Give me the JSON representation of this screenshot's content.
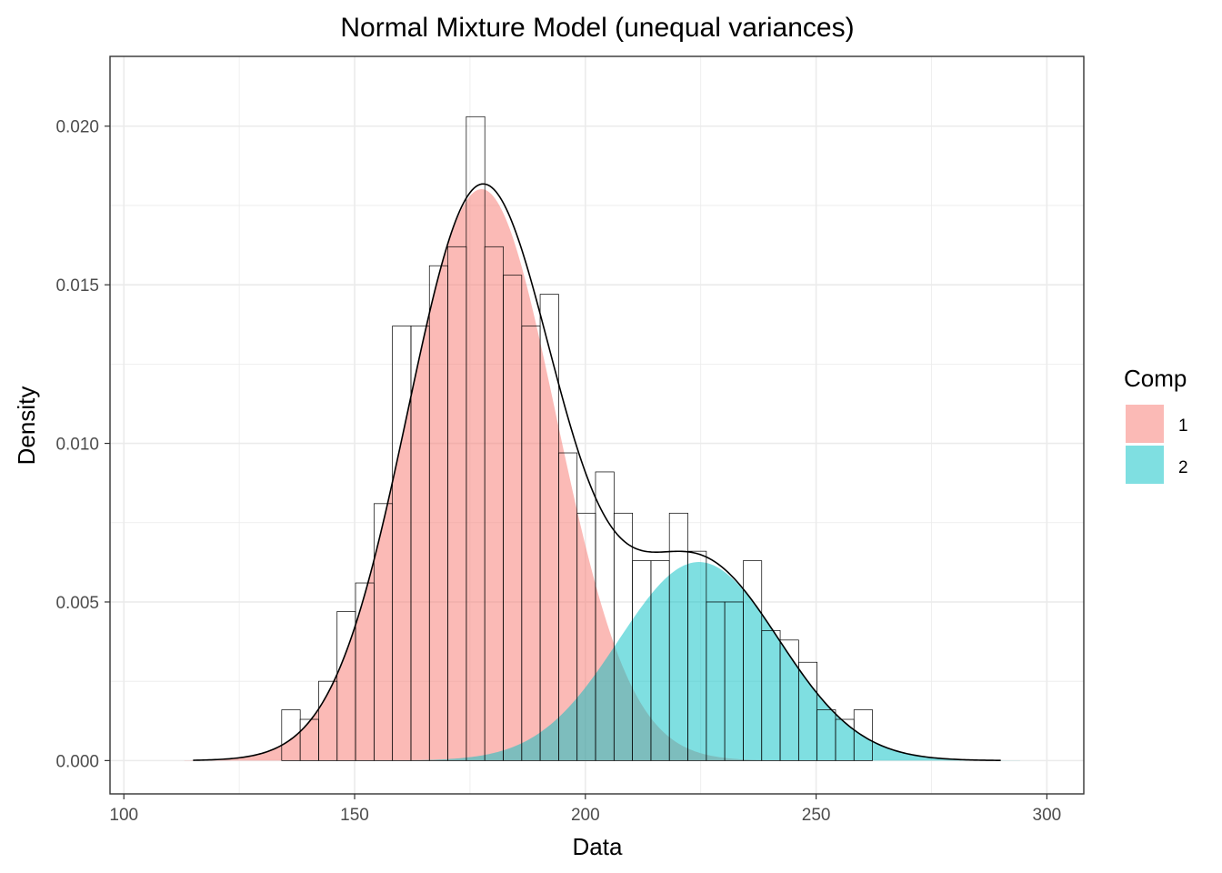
{
  "chart_data": {
    "type": "histogram",
    "title": "Normal Mixture Model (unequal variances)",
    "xlabel": "Data",
    "ylabel": "Density",
    "xlim": [
      97,
      308
    ],
    "ylim": [
      -0.00105,
      0.0222
    ],
    "x_ticks": [
      100,
      150,
      200,
      250,
      300
    ],
    "x_tick_labels": [
      "100",
      "150",
      "200",
      "250",
      "300"
    ],
    "y_ticks": [
      0,
      0.005,
      0.01,
      0.015,
      0.02
    ],
    "y_tick_labels": [
      "0.000",
      "0.005",
      "0.010",
      "0.015",
      "0.020"
    ],
    "grid": true,
    "legend": {
      "title": "Comp",
      "position": "right",
      "entries": [
        {
          "label": "1",
          "color": "#F8766D"
        },
        {
          "label": "2",
          "color": "#00BFC4"
        }
      ]
    },
    "histogram": {
      "bin_width": 4.01,
      "bins": [
        {
          "x0": 134.2,
          "density": 0.0016
        },
        {
          "x0": 138.2,
          "density": 0.0013
        },
        {
          "x0": 142.2,
          "density": 0.0025
        },
        {
          "x0": 146.2,
          "density": 0.0047
        },
        {
          "x0": 150.2,
          "density": 0.0056
        },
        {
          "x0": 154.2,
          "density": 0.0081
        },
        {
          "x0": 158.2,
          "density": 0.0137
        },
        {
          "x0": 162.2,
          "density": 0.0137
        },
        {
          "x0": 166.2,
          "density": 0.0156
        },
        {
          "x0": 170.2,
          "density": 0.0162
        },
        {
          "x0": 174.2,
          "density": 0.0203
        },
        {
          "x0": 178.2,
          "density": 0.0162
        },
        {
          "x0": 182.2,
          "density": 0.0153
        },
        {
          "x0": 186.2,
          "density": 0.0137
        },
        {
          "x0": 190.2,
          "density": 0.0147
        },
        {
          "x0": 194.2,
          "density": 0.0097
        },
        {
          "x0": 198.2,
          "density": 0.0078
        },
        {
          "x0": 202.2,
          "density": 0.0091
        },
        {
          "x0": 206.2,
          "density": 0.0078
        },
        {
          "x0": 210.2,
          "density": 0.0063
        },
        {
          "x0": 214.2,
          "density": 0.0063
        },
        {
          "x0": 218.2,
          "density": 0.0078
        },
        {
          "x0": 222.2,
          "density": 0.0066
        },
        {
          "x0": 226.2,
          "density": 0.005
        },
        {
          "x0": 230.2,
          "density": 0.005
        },
        {
          "x0": 234.2,
          "density": 0.0063
        },
        {
          "x0": 238.2,
          "density": 0.0041
        },
        {
          "x0": 242.2,
          "density": 0.0038
        },
        {
          "x0": 246.2,
          "density": 0.0031
        },
        {
          "x0": 250.2,
          "density": 0.0016
        },
        {
          "x0": 254.2,
          "density": 0.0013
        },
        {
          "x0": 258.2,
          "density": 0.0016
        }
      ]
    },
    "components": [
      {
        "name": "1",
        "weight": 0.727,
        "mean": 177.5,
        "sd": 16.1,
        "color": "#F8766D"
      },
      {
        "name": "2",
        "weight": 0.273,
        "mean": 224.6,
        "sd": 17.4,
        "color": "#00BFC4"
      }
    ],
    "mixture_curve": {
      "x_range": [
        115,
        290
      ],
      "color": "#000000"
    }
  }
}
